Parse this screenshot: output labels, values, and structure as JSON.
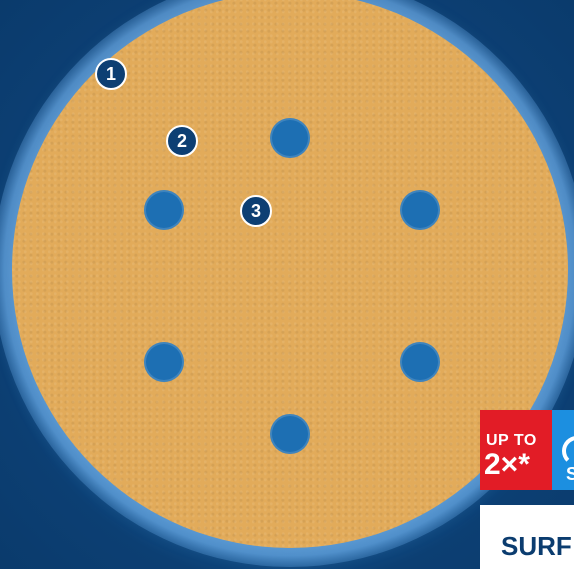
{
  "callouts": [
    "1",
    "2",
    "3"
  ],
  "badge": {
    "up_to": "UP TO",
    "multiplier": "2×*",
    "blue_letter": "S"
  },
  "bottom_label": "SURF",
  "colors": {
    "background": "#0b3c6f",
    "disc": "#e2ab5a",
    "hole": "#1d6fb3",
    "badge_red": "#e21c26",
    "badge_blue": "#1c8fe0"
  }
}
